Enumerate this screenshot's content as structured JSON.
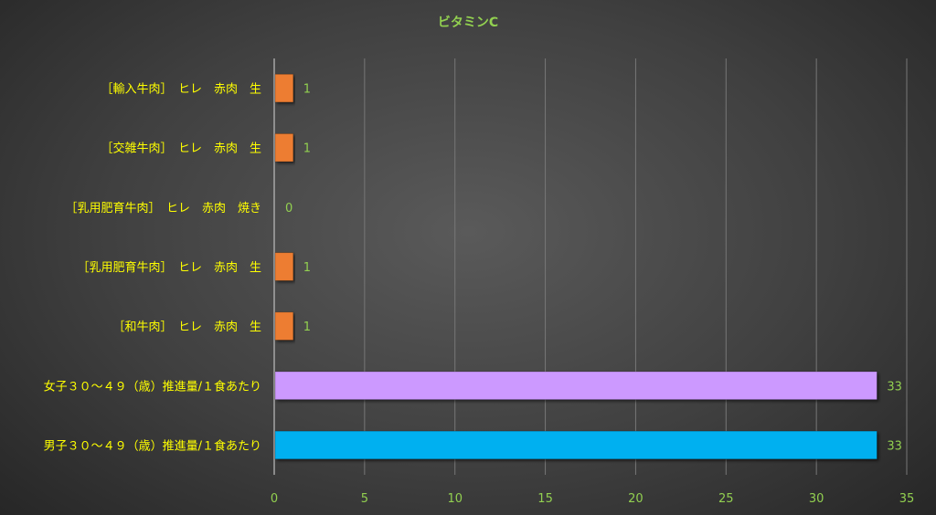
{
  "chart_data": {
    "type": "bar",
    "orientation": "horizontal",
    "title": "ビタミンC",
    "xlabel": "",
    "ylabel": "",
    "xlim": [
      0,
      35
    ],
    "x_ticks": [
      "0",
      "5",
      "10",
      "15",
      "20",
      "25",
      "30",
      "35"
    ],
    "grid": "vertical",
    "legend": "none",
    "categories": [
      "［輸入牛肉］　ヒレ　赤肉　生",
      "［交雑牛肉］　ヒレ　赤肉　生",
      "［乳用肥育牛肉］　ヒレ　赤肉　焼き",
      "［乳用肥育牛肉］　ヒレ　赤肉　生",
      "［和牛肉］　ヒレ　赤肉　生",
      "女子３０～４９（歳）推進量/１食あたり",
      "男子３０～４９（歳）推進量/１食あたり"
    ],
    "values": [
      1,
      1,
      0,
      1,
      1,
      33.3,
      33.3
    ],
    "data_labels": [
      "1",
      "1",
      "0",
      "1",
      "1",
      "33",
      "33"
    ],
    "bar_colors": [
      "#ed7d31",
      "#ed7d31",
      "#ed7d31",
      "#ed7d31",
      "#ed7d31",
      "#cc99ff",
      "#00b0f0"
    ],
    "colors": {
      "title": "#92d050",
      "category_label": "#ffff00",
      "tick_label": "#92d050",
      "data_label": "#92d050",
      "grid": "#777777",
      "axis": "#bfbfbf"
    }
  }
}
